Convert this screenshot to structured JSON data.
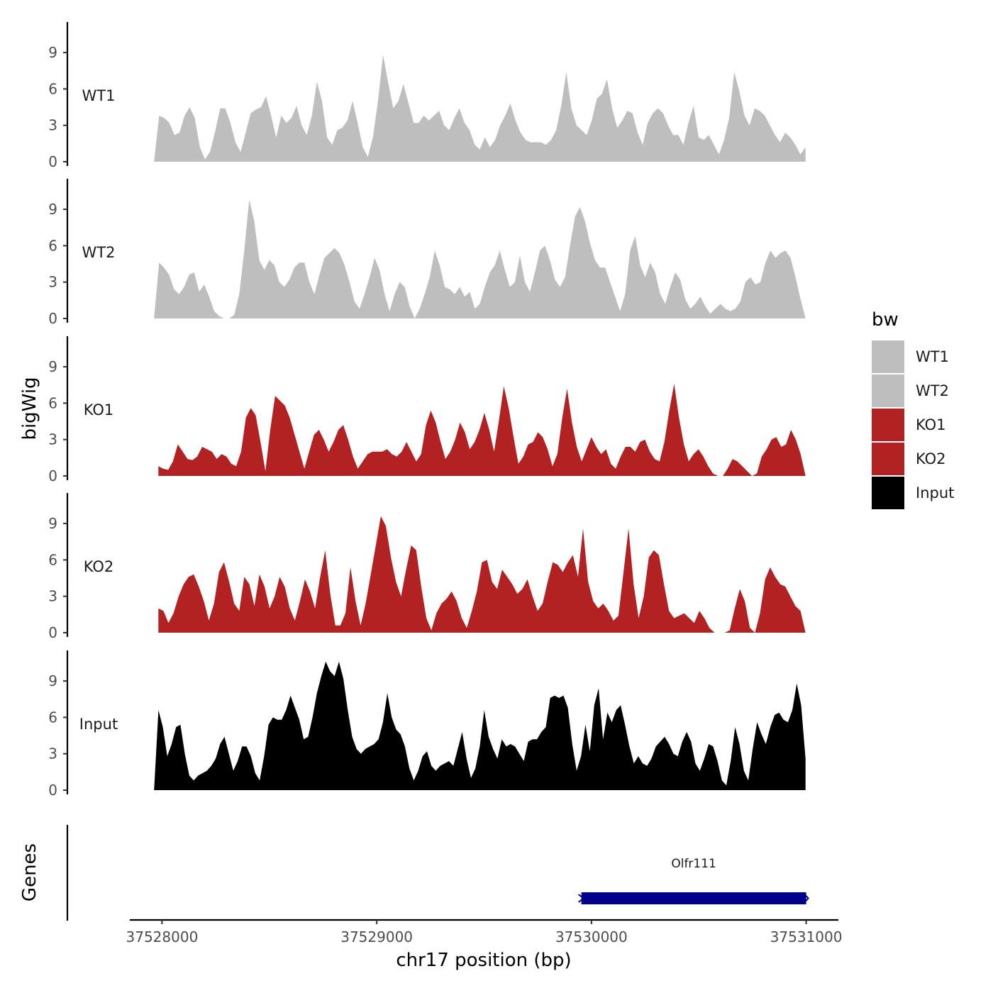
{
  "chart_data": {
    "type": "area",
    "chromosome": "chr17",
    "xlabel": "chr17 position (bp)",
    "ylabel": "bigWig",
    "genes_label": "Genes",
    "xlim": [
      37527850,
      37531150
    ],
    "x_ticks": [
      37528000,
      37529000,
      37530000,
      37531000
    ],
    "x_tick_labels": [
      "37528000",
      "37529000",
      "37530000",
      "37531000"
    ],
    "ylim": [
      0,
      11.5
    ],
    "y_ticks": [
      0,
      3,
      6,
      9
    ],
    "y_tick_labels": [
      "0",
      "3",
      "6",
      "9"
    ],
    "legend": {
      "title": "bw",
      "position": "right",
      "entries": [
        {
          "label": "WT1",
          "color": "#bebebe"
        },
        {
          "label": "WT2",
          "color": "#bebebe"
        },
        {
          "label": "KO1",
          "color": "#b22222"
        },
        {
          "label": "KO2",
          "color": "#b22222"
        },
        {
          "label": "Input",
          "color": "#000000"
        }
      ]
    },
    "series": [
      {
        "name": "WT1",
        "color": "#bebebe",
        "start": 37527963,
        "end": 37530997,
        "values": [
          0,
          3.8,
          3.6,
          3.2,
          2.2,
          2.4,
          3.8,
          4.5,
          3.6,
          1.2,
          0.2,
          0.8,
          2.5,
          4.4,
          4.4,
          3.2,
          1.6,
          0.8,
          2.4,
          4.0,
          4.3,
          4.5,
          5.4,
          3.8,
          2.0,
          3.8,
          3.2,
          3.6,
          4.6,
          3.0,
          2.2,
          3.8,
          6.6,
          5.0,
          2.0,
          1.4,
          2.6,
          2.8,
          3.4,
          5.0,
          3.2,
          1.2,
          0.4,
          2.0,
          5.0,
          8.8,
          6.5,
          4.4,
          5.0,
          6.4,
          4.8,
          3.2,
          3.2,
          3.8,
          3.4,
          3.8,
          4.2,
          3.0,
          2.6,
          3.6,
          4.4,
          3.2,
          2.6,
          1.4,
          1.0,
          2.0,
          1.2,
          1.8,
          3.0,
          3.8,
          4.8,
          3.4,
          2.4,
          1.8,
          1.6,
          1.6,
          1.6,
          1.4,
          1.8,
          2.6,
          4.6,
          7.4,
          4.4,
          3.0,
          2.6,
          2.2,
          3.4,
          5.2,
          5.6,
          6.8,
          4.4,
          2.8,
          3.4,
          4.2,
          4.0,
          2.4,
          1.4,
          3.2,
          4.0,
          4.4,
          4.0,
          3.0,
          2.2,
          2.2,
          1.4,
          3.2,
          4.6,
          2.0,
          1.8,
          2.2,
          1.4,
          0.6,
          1.8,
          3.6,
          7.4,
          5.8,
          3.8,
          3.0,
          4.4,
          4.2,
          3.8,
          3.0,
          2.2,
          1.6,
          2.4,
          2.0,
          1.4,
          0.6,
          1.2
        ]
      },
      {
        "name": "WT2",
        "color": "#bebebe",
        "start": 37527963,
        "end": 37530997,
        "values": [
          0,
          4.6,
          4.2,
          3.6,
          2.4,
          2.0,
          2.6,
          3.6,
          3.8,
          2.2,
          2.8,
          1.8,
          0.6,
          0.2,
          0,
          0,
          0.3,
          2.0,
          5.6,
          9.8,
          8.0,
          4.8,
          4.0,
          4.8,
          4.4,
          3.0,
          2.6,
          3.2,
          4.2,
          4.6,
          4.6,
          3.0,
          2.0,
          3.6,
          5.0,
          5.4,
          5.8,
          5.4,
          4.4,
          3.0,
          1.4,
          0.8,
          2.0,
          3.4,
          5.0,
          4.0,
          2.0,
          0.6,
          2.0,
          3.0,
          2.6,
          1.0,
          0,
          0.8,
          2.0,
          3.4,
          5.6,
          4.4,
          2.6,
          2.4,
          2.0,
          2.6,
          1.8,
          2.2,
          0.8,
          1.2,
          2.6,
          3.8,
          4.4,
          5.6,
          4.0,
          2.6,
          3.0,
          5.2,
          3.0,
          2.2,
          3.8,
          5.6,
          6.0,
          4.8,
          3.2,
          2.6,
          3.4,
          6.0,
          8.4,
          9.2,
          8.0,
          6.2,
          4.8,
          4.2,
          4.2,
          3.0,
          1.8,
          0.6,
          2.0,
          5.6,
          6.8,
          4.4,
          3.4,
          4.6,
          3.8,
          2.0,
          1.2,
          2.6,
          3.8,
          3.2,
          1.6,
          0.8,
          1.2,
          1.8,
          1.0,
          0.4,
          0.8,
          1.2,
          0.8,
          0.6,
          0.8,
          1.4,
          3.0,
          3.4,
          2.8,
          3.0,
          4.6,
          5.6,
          5.0,
          5.4,
          5.6,
          5.0,
          3.4,
          1.6,
          0
        ]
      },
      {
        "name": "KO1",
        "color": "#b22222",
        "start": 37527983,
        "end": 37530997,
        "values": [
          0.8,
          0.6,
          0.5,
          1.2,
          2.6,
          2.0,
          1.4,
          1.3,
          1.6,
          2.4,
          2.2,
          2.0,
          1.4,
          1.8,
          1.6,
          1.0,
          0.8,
          2.0,
          4.8,
          5.6,
          5.0,
          2.8,
          0.4,
          3.8,
          6.6,
          6.2,
          5.8,
          4.8,
          3.4,
          2.0,
          0.6,
          2.0,
          3.4,
          3.8,
          3.0,
          2.0,
          2.8,
          3.8,
          4.2,
          3.0,
          1.6,
          0.6,
          1.2,
          1.8,
          2.0,
          2.0,
          2.0,
          2.2,
          1.8,
          1.6,
          2.0,
          2.8,
          2.0,
          1.2,
          1.8,
          4.2,
          5.4,
          4.4,
          2.8,
          1.4,
          2.0,
          3.0,
          4.4,
          3.6,
          2.2,
          2.8,
          3.8,
          5.2,
          3.8,
          2.0,
          4.6,
          7.4,
          5.6,
          3.2,
          1.0,
          1.6,
          2.6,
          2.8,
          3.6,
          3.2,
          2.2,
          0.8,
          1.8,
          4.8,
          7.2,
          4.4,
          2.4,
          1.2,
          2.2,
          3.2,
          2.4,
          1.8,
          2.2,
          1.0,
          0.6,
          1.6,
          2.4,
          2.4,
          2.0,
          2.8,
          3.0,
          2.0,
          1.4,
          1.2,
          2.8,
          5.4,
          7.6,
          4.8,
          2.6,
          1.2,
          1.8,
          2.2,
          1.6,
          0.8,
          0.2,
          0,
          0,
          0.6,
          1.4,
          1.2,
          0.8,
          0.4,
          0,
          0.2,
          1.6,
          2.2,
          3.0,
          3.2,
          2.4,
          2.6,
          3.8,
          3.0,
          1.8,
          0
        ]
      },
      {
        "name": "KO2",
        "color": "#b22222",
        "start": 37527983,
        "end": 37530997,
        "values": [
          2.0,
          1.8,
          0.8,
          1.6,
          3.0,
          4.0,
          4.6,
          4.8,
          3.8,
          2.6,
          1.0,
          2.4,
          5.0,
          5.8,
          4.2,
          2.4,
          1.8,
          4.6,
          4.0,
          2.2,
          4.8,
          3.8,
          2.0,
          3.0,
          4.6,
          3.8,
          2.0,
          1.0,
          2.6,
          4.4,
          3.4,
          2.0,
          4.6,
          6.8,
          3.2,
          0.6,
          0.6,
          1.6,
          5.4,
          2.6,
          0.6,
          2.4,
          4.8,
          7.2,
          9.6,
          8.8,
          6.2,
          4.2,
          3.0,
          5.2,
          7.2,
          6.8,
          3.8,
          1.2,
          0.2,
          1.6,
          2.4,
          2.8,
          3.4,
          2.6,
          1.2,
          0.4,
          1.8,
          3.4,
          5.8,
          6.0,
          4.2,
          3.6,
          5.2,
          4.6,
          4.0,
          3.2,
          3.6,
          4.4,
          3.0,
          1.8,
          2.4,
          4.2,
          5.8,
          5.6,
          5.0,
          5.8,
          6.4,
          4.6,
          8.6,
          4.2,
          2.6,
          2.0,
          2.4,
          1.8,
          1.0,
          1.4,
          5.0,
          8.6,
          4.0,
          1.2,
          3.0,
          6.2,
          6.8,
          6.4,
          4.0,
          1.8,
          1.2,
          1.4,
          1.6,
          1.2,
          0.8,
          1.8,
          1.2,
          0.4,
          0,
          0,
          0,
          0.2,
          2.0,
          3.6,
          2.6,
          0.4,
          0,
          1.6,
          4.4,
          5.4,
          4.6,
          4.0,
          3.8,
          3.0,
          2.2,
          1.8,
          0
        ]
      },
      {
        "name": "Input",
        "color": "#000000",
        "start": 37527963,
        "end": 37530997,
        "values": [
          0,
          6.6,
          5.2,
          2.8,
          3.8,
          5.2,
          5.4,
          3.0,
          1.2,
          0.8,
          1.2,
          1.4,
          1.6,
          2.0,
          2.6,
          3.8,
          4.4,
          3.0,
          1.6,
          2.4,
          3.6,
          3.6,
          2.8,
          1.4,
          0.8,
          2.8,
          5.4,
          6.0,
          5.8,
          5.8,
          6.6,
          7.8,
          6.8,
          5.8,
          4.2,
          4.4,
          6.0,
          8.0,
          9.4,
          10.6,
          9.8,
          9.4,
          10.6,
          9.2,
          6.6,
          4.4,
          3.4,
          3.0,
          3.4,
          3.6,
          3.8,
          4.2,
          5.6,
          8.0,
          6.0,
          5.0,
          4.6,
          3.6,
          1.8,
          0.8,
          1.6,
          2.8,
          3.2,
          2.0,
          1.6,
          2.0,
          2.2,
          2.4,
          2.0,
          3.4,
          4.8,
          2.6,
          1.0,
          1.8,
          3.6,
          6.6,
          4.4,
          3.4,
          2.6,
          4.2,
          3.6,
          3.8,
          3.6,
          3.0,
          2.4,
          4.0,
          4.2,
          4.2,
          4.8,
          5.2,
          7.6,
          7.8,
          7.6,
          7.8,
          6.8,
          3.8,
          1.6,
          2.8,
          5.4,
          3.2,
          7.0,
          8.4,
          4.2,
          6.4,
          5.6,
          6.6,
          7.0,
          5.4,
          3.6,
          2.2,
          2.8,
          2.2,
          2.0,
          2.6,
          3.6,
          4.0,
          4.4,
          3.8,
          3.0,
          2.8,
          4.0,
          4.8,
          4.0,
          2.2,
          1.6,
          2.6,
          3.8,
          3.6,
          2.4,
          0.8,
          0.4,
          2.4,
          5.2,
          3.8,
          1.6,
          0.8,
          3.4,
          5.6,
          4.6,
          3.8,
          5.2,
          6.2,
          6.4,
          5.8,
          5.6,
          6.6,
          8.8,
          7.0,
          2.6
        ]
      }
    ],
    "genes": [
      {
        "name": "Olfr111",
        "start": 37529953,
        "end": 37531000,
        "color": "#00008b",
        "strand": "-"
      }
    ]
  }
}
